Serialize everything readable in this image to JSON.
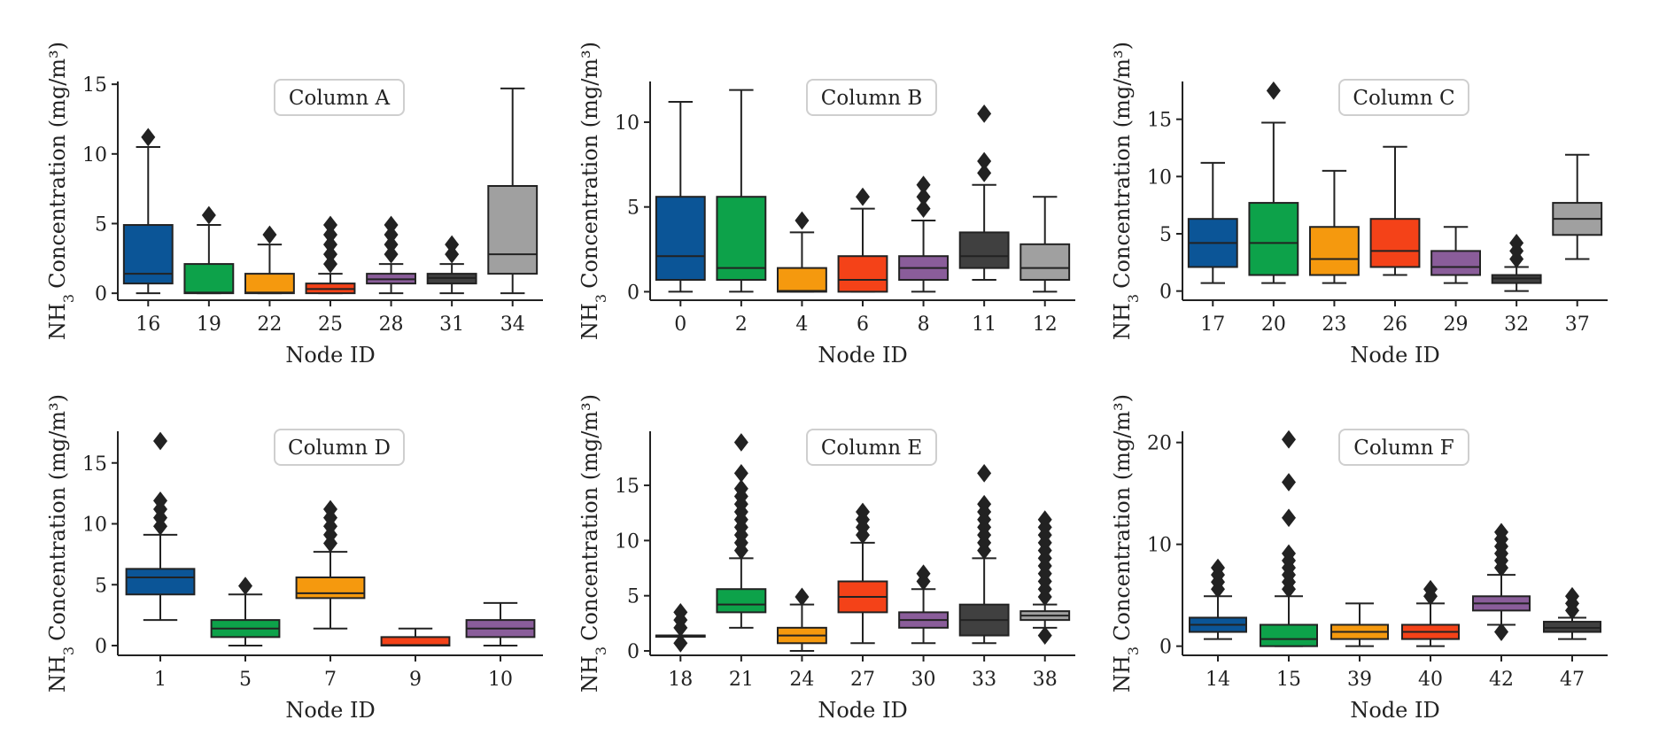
{
  "chart_data": [
    {
      "type": "box",
      "title": "Column A",
      "xlabel": "Node ID",
      "ylabel": "Concentration (mg/m³)",
      "ylabel_prefix": "NH",
      "ylabel_sub": "3",
      "ylim": [
        -0.5,
        15.2
      ],
      "yticks": [
        0,
        5,
        10,
        15
      ],
      "boxes": [
        {
          "node": "16",
          "min": 0,
          "q1": 0.7,
          "median": 1.4,
          "q3": 4.9,
          "max": 10.5,
          "outliers": [
            11.2
          ],
          "color": "#0b5597"
        },
        {
          "node": "19",
          "min": 0,
          "q1": 0,
          "median": 0.05,
          "q3": 2.1,
          "max": 4.9,
          "outliers": [
            5.6
          ],
          "color": "#0da24a"
        },
        {
          "node": "22",
          "min": 0,
          "q1": 0,
          "median": 0.05,
          "q3": 1.4,
          "max": 3.5,
          "outliers": [
            4.2
          ],
          "color": "#f5990e"
        },
        {
          "node": "25",
          "min": 0,
          "q1": 0,
          "median": 0.3,
          "q3": 0.7,
          "max": 1.4,
          "outliers": [
            2.1,
            2.8,
            3.5,
            4.2,
            4.9
          ],
          "color": "#f44218"
        },
        {
          "node": "28",
          "min": 0,
          "q1": 0.7,
          "median": 1.0,
          "q3": 1.4,
          "max": 2.1,
          "outliers": [
            2.8,
            3.5,
            4.2,
            4.9
          ],
          "color": "#8a5d9a"
        },
        {
          "node": "31",
          "min": 0,
          "q1": 0.7,
          "median": 1.1,
          "q3": 1.4,
          "max": 2.1,
          "outliers": [
            2.8,
            3.5
          ],
          "color": "#404040"
        },
        {
          "node": "34",
          "min": 0,
          "q1": 1.4,
          "median": 2.8,
          "q3": 7.7,
          "max": 14.7,
          "outliers": [],
          "color": "#a0a0a0"
        }
      ]
    },
    {
      "type": "box",
      "title": "Column B",
      "xlabel": "Node ID",
      "ylabel": "Concentration (mg/m³)",
      "ylabel_prefix": "NH",
      "ylabel_sub": "3",
      "ylim": [
        -0.5,
        12.4
      ],
      "yticks": [
        0,
        5,
        10
      ],
      "boxes": [
        {
          "node": "0",
          "min": 0,
          "q1": 0.7,
          "median": 2.1,
          "q3": 5.6,
          "max": 11.2,
          "outliers": [],
          "color": "#0b5597"
        },
        {
          "node": "2",
          "min": 0,
          "q1": 0.7,
          "median": 1.4,
          "q3": 5.6,
          "max": 11.9,
          "outliers": [],
          "color": "#0da24a"
        },
        {
          "node": "4",
          "min": 0,
          "q1": 0,
          "median": 0.05,
          "q3": 1.4,
          "max": 3.5,
          "outliers": [
            4.2
          ],
          "color": "#f5990e"
        },
        {
          "node": "6",
          "min": 0,
          "q1": 0,
          "median": 0.7,
          "q3": 2.1,
          "max": 4.9,
          "outliers": [
            5.6
          ],
          "color": "#f44218"
        },
        {
          "node": "8",
          "min": 0,
          "q1": 0.7,
          "median": 1.4,
          "q3": 2.1,
          "max": 4.2,
          "outliers": [
            4.9,
            5.6,
            6.3
          ],
          "color": "#8a5d9a"
        },
        {
          "node": "11",
          "min": 0.7,
          "q1": 1.4,
          "median": 2.1,
          "q3": 3.5,
          "max": 6.3,
          "outliers": [
            7.0,
            7.7,
            10.5
          ],
          "color": "#404040"
        },
        {
          "node": "12",
          "min": 0,
          "q1": 0.7,
          "median": 1.4,
          "q3": 2.8,
          "max": 5.6,
          "outliers": [],
          "color": "#a0a0a0"
        }
      ]
    },
    {
      "type": "box",
      "title": "Column C",
      "xlabel": "Node ID",
      "ylabel": "Concentration (mg/m³)",
      "ylabel_prefix": "NH",
      "ylabel_sub": "3",
      "ylim": [
        -0.8,
        18.3
      ],
      "yticks": [
        0,
        5,
        10,
        15
      ],
      "boxes": [
        {
          "node": "17",
          "min": 0.7,
          "q1": 2.1,
          "median": 4.2,
          "q3": 6.3,
          "max": 11.2,
          "outliers": [],
          "color": "#0b5597"
        },
        {
          "node": "20",
          "min": 0.7,
          "q1": 1.4,
          "median": 4.2,
          "q3": 7.7,
          "max": 14.7,
          "outliers": [
            17.5
          ],
          "color": "#0da24a"
        },
        {
          "node": "23",
          "min": 0.7,
          "q1": 1.4,
          "median": 2.8,
          "q3": 5.6,
          "max": 10.5,
          "outliers": [],
          "color": "#f5990e"
        },
        {
          "node": "26",
          "min": 1.4,
          "q1": 2.1,
          "median": 3.5,
          "q3": 6.3,
          "max": 12.6,
          "outliers": [],
          "color": "#f44218"
        },
        {
          "node": "29",
          "min": 0.7,
          "q1": 1.4,
          "median": 2.1,
          "q3": 3.5,
          "max": 5.6,
          "outliers": [],
          "color": "#8a5d9a"
        },
        {
          "node": "32",
          "min": 0,
          "q1": 0.7,
          "median": 1.1,
          "q3": 1.4,
          "max": 2.1,
          "outliers": [
            2.8,
            3.5,
            4.2
          ],
          "color": "#404040"
        },
        {
          "node": "37",
          "min": 2.8,
          "q1": 4.9,
          "median": 6.3,
          "q3": 7.7,
          "max": 11.9,
          "outliers": [],
          "color": "#a0a0a0"
        }
      ]
    },
    {
      "type": "box",
      "title": "Column D",
      "xlabel": "Node ID",
      "ylabel": "Concentration (mg/m³)",
      "ylabel_prefix": "NH",
      "ylabel_sub": "3",
      "ylim": [
        -0.8,
        17.6
      ],
      "yticks": [
        0,
        5,
        10,
        15
      ],
      "boxes": [
        {
          "node": "1",
          "min": 2.1,
          "q1": 4.2,
          "median": 5.6,
          "q3": 6.3,
          "max": 9.1,
          "outliers": [
            9.8,
            10.5,
            11.2,
            11.9,
            16.8
          ],
          "color": "#0b5597"
        },
        {
          "node": "5",
          "min": 0,
          "q1": 0.7,
          "median": 1.4,
          "q3": 2.1,
          "max": 4.2,
          "outliers": [
            4.9
          ],
          "color": "#0da24a"
        },
        {
          "node": "7",
          "min": 1.4,
          "q1": 3.9,
          "median": 4.3,
          "q3": 5.6,
          "max": 7.7,
          "outliers": [
            8.4,
            9.1,
            9.8,
            10.5,
            11.2
          ],
          "color": "#f5990e"
        },
        {
          "node": "9",
          "min": 0,
          "q1": 0,
          "median": 0.05,
          "q3": 0.7,
          "max": 1.4,
          "outliers": [],
          "color": "#f44218"
        },
        {
          "node": "10",
          "min": 0,
          "q1": 0.7,
          "median": 1.4,
          "q3": 2.1,
          "max": 3.5,
          "outliers": [],
          "color": "#8a5d9a"
        }
      ]
    },
    {
      "type": "box",
      "title": "Column E",
      "xlabel": "Node ID",
      "ylabel": "Concentration (mg/m³)",
      "ylabel_prefix": "NH",
      "ylabel_sub": "3",
      "ylim": [
        -0.4,
        19.9
      ],
      "yticks": [
        0,
        5,
        10,
        15
      ],
      "boxes": [
        {
          "node": "18",
          "min": 1.4,
          "q1": 1.4,
          "median": 1.4,
          "q3": 1.4,
          "max": 1.4,
          "outliers": [
            0.7,
            2.1,
            2.8,
            3.5
          ],
          "color": "#0b5597"
        },
        {
          "node": "21",
          "min": 2.1,
          "q1": 3.5,
          "median": 4.2,
          "q3": 5.6,
          "max": 8.4,
          "outliers": [
            9.1,
            9.8,
            10.5,
            11.2,
            11.9,
            12.6,
            13.3,
            14.0,
            14.7,
            16.1,
            18.9
          ],
          "color": "#0da24a"
        },
        {
          "node": "24",
          "min": 0,
          "q1": 0.7,
          "median": 1.4,
          "q3": 2.1,
          "max": 4.2,
          "outliers": [
            4.9
          ],
          "color": "#f5990e"
        },
        {
          "node": "27",
          "min": 0.7,
          "q1": 3.5,
          "median": 4.9,
          "q3": 6.3,
          "max": 9.8,
          "outliers": [
            10.5,
            11.2,
            11.9,
            12.6
          ],
          "color": "#f44218"
        },
        {
          "node": "30",
          "min": 0.7,
          "q1": 2.1,
          "median": 2.8,
          "q3": 3.5,
          "max": 5.6,
          "outliers": [
            6.3,
            7.0
          ],
          "color": "#8a5d9a"
        },
        {
          "node": "33",
          "min": 0.7,
          "q1": 1.4,
          "median": 2.8,
          "q3": 4.2,
          "max": 8.4,
          "outliers": [
            9.1,
            9.8,
            10.5,
            11.2,
            11.9,
            12.6,
            13.3,
            16.1
          ],
          "color": "#404040"
        },
        {
          "node": "38",
          "min": 2.1,
          "q1": 2.8,
          "median": 3.2,
          "q3": 3.6,
          "max": 4.2,
          "outliers": [
            1.4,
            4.9,
            5.6,
            6.3,
            7.0,
            7.7,
            8.4,
            9.1,
            9.8,
            10.5,
            11.2,
            11.9
          ],
          "color": "#a0a0a0"
        }
      ]
    },
    {
      "type": "box",
      "title": "Column F",
      "xlabel": "Node ID",
      "ylabel": "Concentration (mg/m³)",
      "ylabel_prefix": "NH",
      "ylabel_sub": "3",
      "ylim": [
        -0.9,
        21.1
      ],
      "yticks": [
        0,
        10,
        20
      ],
      "boxes": [
        {
          "node": "14",
          "min": 0.7,
          "q1": 1.4,
          "median": 2.1,
          "q3": 2.8,
          "max": 4.9,
          "outliers": [
            5.6,
            6.3,
            7.0,
            7.7
          ],
          "color": "#0b5597"
        },
        {
          "node": "15",
          "min": 0,
          "q1": 0,
          "median": 0.7,
          "q3": 2.1,
          "max": 4.9,
          "outliers": [
            5.6,
            6.3,
            7.0,
            7.7,
            8.4,
            9.1,
            12.6,
            16.1,
            20.3
          ],
          "color": "#0da24a"
        },
        {
          "node": "39",
          "min": 0,
          "q1": 0.7,
          "median": 1.4,
          "q3": 2.1,
          "max": 4.2,
          "outliers": [],
          "color": "#f5990e"
        },
        {
          "node": "40",
          "min": 0,
          "q1": 0.7,
          "median": 1.4,
          "q3": 2.1,
          "max": 4.2,
          "outliers": [
            4.9,
            5.6
          ],
          "color": "#f44218"
        },
        {
          "node": "42",
          "min": 2.1,
          "q1": 3.5,
          "median": 4.2,
          "q3": 4.9,
          "max": 7.0,
          "outliers": [
            1.4,
            7.7,
            8.4,
            9.1,
            9.8,
            10.5,
            11.2
          ],
          "color": "#8a5d9a"
        },
        {
          "node": "47",
          "min": 0.7,
          "q1": 1.4,
          "median": 1.8,
          "q3": 2.4,
          "max": 2.8,
          "outliers": [
            3.5,
            4.2,
            4.9
          ],
          "color": "#404040"
        }
      ]
    }
  ]
}
